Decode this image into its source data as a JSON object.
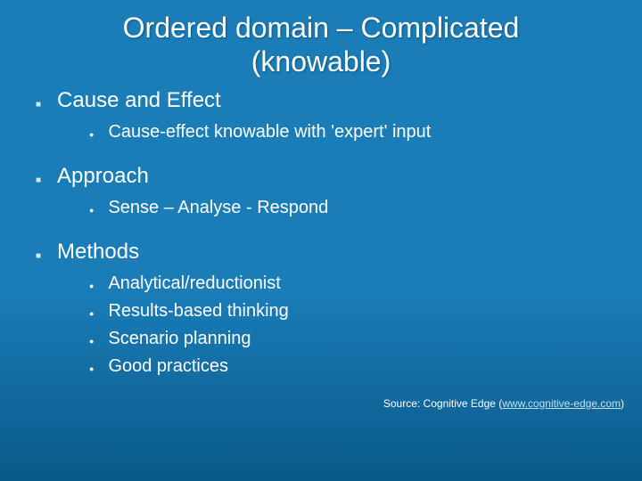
{
  "title_line1": "Ordered domain – Complicated",
  "title_line2": "(knowable)",
  "sections": [
    {
      "header": "Cause and Effect",
      "items": [
        "Cause-effect knowable with 'expert' input"
      ]
    },
    {
      "header": "Approach",
      "items": [
        "Sense – Analyse - Respond"
      ]
    },
    {
      "header": "Methods",
      "items": [
        "Analytical/reductionist",
        "Results-based thinking",
        "Scenario planning",
        "Good practices"
      ]
    }
  ],
  "source_prefix": "Source: Cognitive Edge (",
  "source_link_text": "www.cognitive-edge.com",
  "source_suffix": ")",
  "colors": {
    "background_top": "#1a7db8",
    "background_bottom": "#0a5a8a",
    "text": "#ffffff",
    "link": "#c8dff0"
  },
  "typography": {
    "title_fontsize": 32,
    "section_header_fontsize": 24,
    "item_fontsize": 20,
    "source_fontsize": 12,
    "font_family": "Arial"
  }
}
